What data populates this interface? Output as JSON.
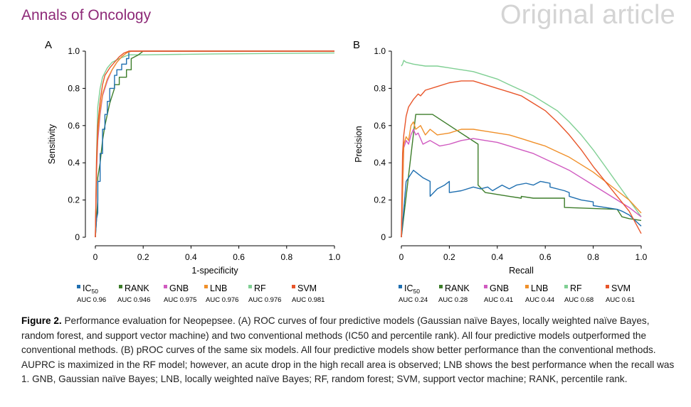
{
  "header": {
    "journal": "Annals of Oncology",
    "article_type": "Original article"
  },
  "colors": {
    "IC50": "#1f6fb0",
    "RANK": "#3d7d2a",
    "GNB": "#d05ac0",
    "LNB": "#f0902a",
    "RF": "#7fcf93",
    "SVM": "#e8552a",
    "journal": "#8e2a78"
  },
  "chart_data": [
    {
      "panel": "A",
      "type": "line",
      "xlabel": "1-specificity",
      "ylabel": "Sensitivity",
      "xlim": [
        0,
        1
      ],
      "ylim": [
        0,
        1
      ],
      "xticks": [
        "0",
        "0.2",
        "0.4",
        "0.6",
        "0.8",
        "1.0"
      ],
      "yticks": [
        "0",
        "0.2",
        "0.4",
        "0.6",
        "0.8",
        "1.0"
      ],
      "series": [
        {
          "name": "IC50",
          "label": "IC",
          "sub": "50",
          "auc": "AUC 0.96",
          "x": [
            0,
            0.005,
            0.01,
            0.01,
            0.02,
            0.02,
            0.03,
            0.03,
            0.04,
            0.04,
            0.05,
            0.05,
            0.06,
            0.06,
            0.08,
            0.08,
            0.09,
            0.09,
            0.11,
            0.11,
            0.13,
            0.13,
            0.14,
            0.14,
            0.2,
            1.0
          ],
          "y": [
            0,
            0.1,
            0.13,
            0.3,
            0.3,
            0.45,
            0.45,
            0.58,
            0.58,
            0.66,
            0.66,
            0.73,
            0.73,
            0.8,
            0.8,
            0.87,
            0.87,
            0.9,
            0.9,
            0.93,
            0.93,
            0.96,
            0.96,
            1.0,
            1.0,
            1.0
          ]
        },
        {
          "name": "RANK",
          "label": "RANK",
          "auc": "AUC 0.946",
          "x": [
            0,
            0.01,
            0.01,
            0.02,
            0.03,
            0.04,
            0.05,
            0.06,
            0.07,
            0.08,
            0.08,
            0.1,
            0.1,
            0.13,
            0.13,
            0.15,
            0.15,
            0.18,
            0.2,
            1.0
          ],
          "y": [
            0,
            0.2,
            0.32,
            0.4,
            0.52,
            0.6,
            0.66,
            0.72,
            0.76,
            0.8,
            0.82,
            0.82,
            0.86,
            0.86,
            0.9,
            0.9,
            0.96,
            0.98,
            1.0,
            1.0
          ]
        },
        {
          "name": "GNB",
          "label": "GNB",
          "auc": "AUC 0.975",
          "x": [
            0,
            0.005,
            0.01,
            0.02,
            0.03,
            0.05,
            0.07,
            0.09,
            0.11,
            0.13,
            0.15,
            0.2,
            1.0
          ],
          "y": [
            0,
            0.35,
            0.52,
            0.66,
            0.76,
            0.84,
            0.9,
            0.94,
            0.97,
            0.99,
            1.0,
            1.0,
            1.0
          ]
        },
        {
          "name": "LNB",
          "label": "LNB",
          "auc": "AUC 0.976",
          "x": [
            0,
            0.005,
            0.01,
            0.02,
            0.03,
            0.05,
            0.07,
            0.09,
            0.11,
            0.13,
            0.15,
            0.2,
            1.0
          ],
          "y": [
            0,
            0.38,
            0.55,
            0.68,
            0.77,
            0.85,
            0.9,
            0.94,
            0.97,
            0.99,
            1.0,
            1.0,
            1.0
          ]
        },
        {
          "name": "RF",
          "label": "RF",
          "auc": "AUC 0.976",
          "x": [
            0,
            0.005,
            0.01,
            0.02,
            0.03,
            0.05,
            0.07,
            0.1,
            0.12,
            0.14,
            0.2,
            0.5,
            1.0
          ],
          "y": [
            0,
            0.45,
            0.7,
            0.8,
            0.86,
            0.91,
            0.94,
            0.96,
            0.97,
            0.98,
            0.98,
            0.985,
            0.99
          ]
        },
        {
          "name": "SVM",
          "label": "SVM",
          "auc": "AUC 0.981",
          "x": [
            0,
            0.005,
            0.01,
            0.02,
            0.03,
            0.04,
            0.06,
            0.08,
            0.1,
            0.12,
            0.14,
            0.2,
            1.0
          ],
          "y": [
            0,
            0.42,
            0.6,
            0.73,
            0.82,
            0.87,
            0.91,
            0.94,
            0.97,
            0.99,
            1.0,
            1.0,
            1.0
          ]
        }
      ]
    },
    {
      "panel": "B",
      "type": "line",
      "xlabel": "Recall",
      "ylabel": "Precision",
      "xlim": [
        0,
        1
      ],
      "ylim": [
        0,
        1
      ],
      "xticks": [
        "0",
        "0.2",
        "0.4",
        "0.6",
        "0.8",
        "1.0"
      ],
      "yticks": [
        "0",
        "0.2",
        "0.4",
        "0.6",
        "0.8",
        "1.0"
      ],
      "series": [
        {
          "name": "IC50",
          "label": "IC",
          "sub": "50",
          "auc": "AUC 0.24",
          "x": [
            0,
            0.02,
            0.05,
            0.07,
            0.09,
            0.12,
            0.12,
            0.15,
            0.18,
            0.2,
            0.2,
            0.25,
            0.3,
            0.33,
            0.36,
            0.38,
            0.42,
            0.45,
            0.48,
            0.52,
            0.55,
            0.58,
            0.62,
            0.62,
            0.68,
            0.7,
            0.7,
            0.75,
            0.8,
            0.8,
            0.85,
            0.9,
            0.92,
            0.95,
            1.0
          ],
          "y": [
            0,
            0.3,
            0.36,
            0.34,
            0.32,
            0.3,
            0.22,
            0.26,
            0.28,
            0.3,
            0.24,
            0.25,
            0.27,
            0.26,
            0.27,
            0.25,
            0.28,
            0.26,
            0.28,
            0.29,
            0.28,
            0.3,
            0.29,
            0.27,
            0.25,
            0.24,
            0.22,
            0.2,
            0.19,
            0.17,
            0.16,
            0.15,
            0.14,
            0.12,
            0.06
          ]
        },
        {
          "name": "RANK",
          "label": "RANK",
          "auc": "AUC 0.28",
          "x": [
            0,
            0.06,
            0.13,
            0.13,
            0.32,
            0.32,
            0.35,
            0.45,
            0.5,
            0.5,
            0.55,
            0.68,
            0.68,
            0.9,
            0.92,
            0.95,
            1.0
          ],
          "y": [
            0,
            0.66,
            0.66,
            0.66,
            0.5,
            0.28,
            0.24,
            0.22,
            0.21,
            0.22,
            0.21,
            0.21,
            0.16,
            0.15,
            0.11,
            0.1,
            0.09
          ]
        },
        {
          "name": "GNB",
          "label": "GNB",
          "auc": "AUC 0.41",
          "x": [
            0,
            0.01,
            0.02,
            0.03,
            0.04,
            0.05,
            0.06,
            0.07,
            0.09,
            0.12,
            0.16,
            0.2,
            0.25,
            0.3,
            0.35,
            0.4,
            0.45,
            0.5,
            0.55,
            0.6,
            0.65,
            0.7,
            0.75,
            0.8,
            0.85,
            0.9,
            0.95,
            1.0
          ],
          "y": [
            0,
            0.48,
            0.52,
            0.5,
            0.55,
            0.58,
            0.55,
            0.56,
            0.5,
            0.52,
            0.49,
            0.5,
            0.52,
            0.53,
            0.52,
            0.51,
            0.49,
            0.47,
            0.45,
            0.42,
            0.39,
            0.36,
            0.32,
            0.28,
            0.24,
            0.2,
            0.16,
            0.11
          ]
        },
        {
          "name": "LNB",
          "label": "LNB",
          "auc": "AUC 0.44",
          "x": [
            0,
            0.01,
            0.02,
            0.03,
            0.04,
            0.05,
            0.06,
            0.08,
            0.1,
            0.12,
            0.15,
            0.2,
            0.25,
            0.3,
            0.35,
            0.4,
            0.45,
            0.5,
            0.55,
            0.6,
            0.65,
            0.7,
            0.75,
            0.8,
            0.85,
            0.9,
            0.95,
            1.0
          ],
          "y": [
            0,
            0.5,
            0.54,
            0.52,
            0.6,
            0.62,
            0.58,
            0.6,
            0.55,
            0.58,
            0.55,
            0.56,
            0.58,
            0.58,
            0.57,
            0.56,
            0.55,
            0.53,
            0.51,
            0.49,
            0.46,
            0.43,
            0.39,
            0.35,
            0.3,
            0.25,
            0.2,
            0.13
          ]
        },
        {
          "name": "RF",
          "label": "RF",
          "auc": "AUC 0.68",
          "x": [
            0,
            0.005,
            0.01,
            0.02,
            0.05,
            0.1,
            0.15,
            0.2,
            0.25,
            0.3,
            0.35,
            0.4,
            0.45,
            0.5,
            0.55,
            0.6,
            0.65,
            0.7,
            0.75,
            0.8,
            0.85,
            0.9,
            0.95,
            1.0
          ],
          "y": [
            0.92,
            0.93,
            0.95,
            0.94,
            0.93,
            0.92,
            0.92,
            0.91,
            0.9,
            0.89,
            0.87,
            0.85,
            0.82,
            0.79,
            0.76,
            0.72,
            0.68,
            0.62,
            0.55,
            0.47,
            0.38,
            0.29,
            0.2,
            0.11
          ]
        },
        {
          "name": "SVM",
          "label": "SVM",
          "auc": "AUC 0.61",
          "x": [
            0,
            0.005,
            0.01,
            0.02,
            0.03,
            0.05,
            0.07,
            0.08,
            0.1,
            0.15,
            0.2,
            0.25,
            0.3,
            0.35,
            0.4,
            0.45,
            0.5,
            0.55,
            0.6,
            0.65,
            0.7,
            0.75,
            0.8,
            0.85,
            0.9,
            0.95,
            1.0
          ],
          "y": [
            0,
            0.45,
            0.55,
            0.65,
            0.7,
            0.74,
            0.77,
            0.76,
            0.79,
            0.81,
            0.83,
            0.84,
            0.84,
            0.82,
            0.8,
            0.78,
            0.76,
            0.72,
            0.68,
            0.62,
            0.55,
            0.47,
            0.38,
            0.3,
            0.22,
            0.14,
            0.02
          ]
        }
      ]
    }
  ],
  "caption": {
    "label": "Figure 2.",
    "text": "Performance evaluation for Neopepsee. (A) ROC curves of four predictive models (Gaussian naïve Bayes, locally weighted naïve Bayes, random forest, and support vector machine) and two conventional methods (IC50 and percentile rank). All four predictive models outperformed the conventional methods. (B) pROC curves of the same six models. All four predictive models show better performance than the conventional methods. AUPRC is maximized in the RF model; however, an acute drop in the high recall area is observed; LNB shows the best performance when the recall was 1. GNB, Gaussian naïve Bayes; LNB, locally weighted naïve Bayes; RF, random forest; SVM, support vector machine; RANK, percentile rank."
  }
}
